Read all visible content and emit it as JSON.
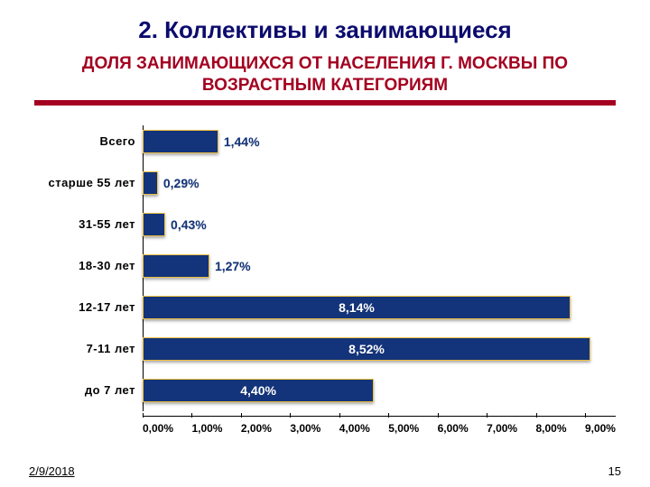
{
  "title": "2. Коллективы и занимающиеся",
  "subtitle": "ДОЛЯ ЗАНИМАЮЩИХСЯ ОТ НАСЕЛЕНИЯ Г. МОСКВЫ ПО ВОЗРАСТНЫМ КАТЕГОРИЯМ",
  "footer": {
    "date": "2/9/2018",
    "page": "15"
  },
  "chart": {
    "type": "bar-horizontal",
    "xlim": [
      0,
      9
    ],
    "xtick_step": 1,
    "xtick_format_suffix": "%",
    "xtick_decimals": 2,
    "bar_color": "#13347a",
    "bar_border_color": "#f0c040",
    "background_color": "#ffffff",
    "categories": [
      "Всего",
      "старше 55 лет",
      "31-55 лет",
      "18-30 лет",
      "12-17 лет",
      "7-11 лет",
      "до 7 лет"
    ],
    "values": [
      1.44,
      0.29,
      0.43,
      1.27,
      8.14,
      8.52,
      4.4
    ],
    "value_labels": [
      "1,44%",
      "0,29%",
      "0,43%",
      "1,27%",
      "8,14%",
      "8,52%",
      "4,40%"
    ],
    "value_label_inside_color": "#ffffff",
    "value_label_outside_color": "#13347a",
    "title_color": "#0b0b6e",
    "subtitle_color": "#a40020",
    "rule_color": "#a40020",
    "title_fontsize": 26,
    "subtitle_fontsize": 19,
    "ylabel_fontsize": 13,
    "value_fontsize": 14,
    "tick_fontsize": 12
  }
}
